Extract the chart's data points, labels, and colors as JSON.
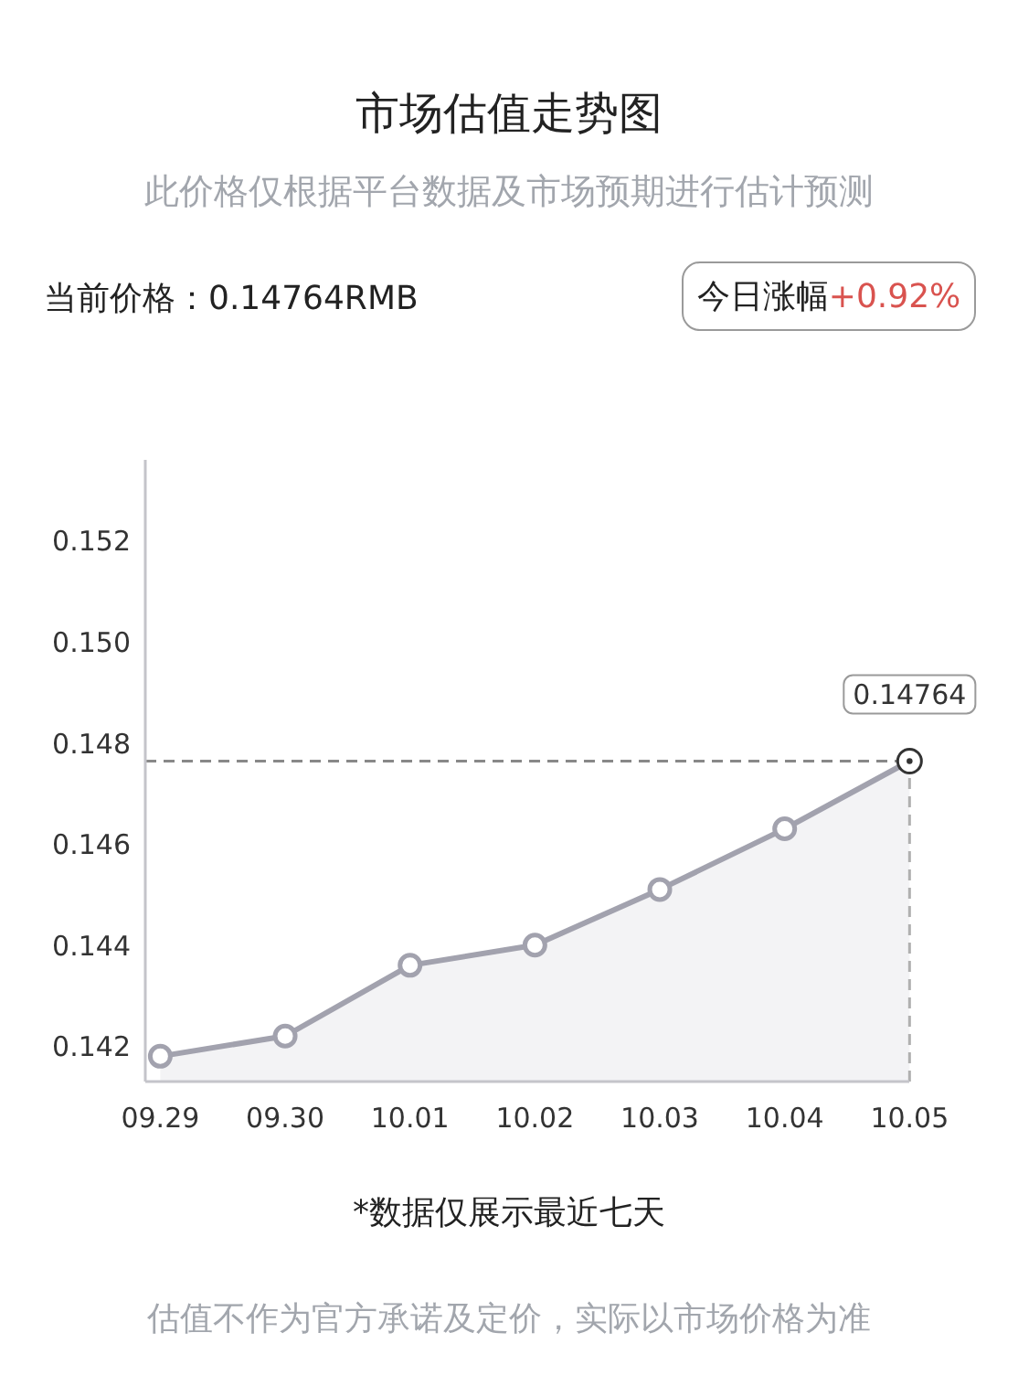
{
  "chart_data": {
    "type": "area",
    "title": "市场估值走势图",
    "subtitle": "此价格仅根据平台数据及市场预期进行估计预测",
    "annotations": [
      "当前价格：0.14764RMB",
      "今日涨幅",
      "+0.92%",
      "*数据仅展示最近七天",
      "估值不作为官方承诺及定价，实际以市场价格为准"
    ],
    "categories": [
      "09.29",
      "09.30",
      "10.01",
      "10.02",
      "10.03",
      "10.04",
      "10.05"
    ],
    "series": [
      {
        "color": "#a2a2ae",
        "values": [
          0.1418,
          0.1422,
          0.1436,
          0.144,
          0.1451,
          0.1463,
          0.14764
        ],
        "value_labels": [
          null,
          null,
          null,
          null,
          null,
          null,
          "0.14764"
        ]
      }
    ],
    "ylim": [
      0.1413,
      0.1536
    ],
    "yticks": [
      0.142,
      0.144,
      0.146,
      0.148,
      {
        "value": 0.15,
        "label": "0.150"
      },
      0.152
    ],
    "ref_lines": [
      {
        "axis": "y",
        "value": 0.14764,
        "color": "#888888",
        "line_style": "dashed"
      },
      {
        "axis": "x",
        "value": "10.05",
        "color": "#b0b0b0",
        "line_style": "dashed"
      }
    ],
    "marker": "circle",
    "line_style": "solid"
  }
}
